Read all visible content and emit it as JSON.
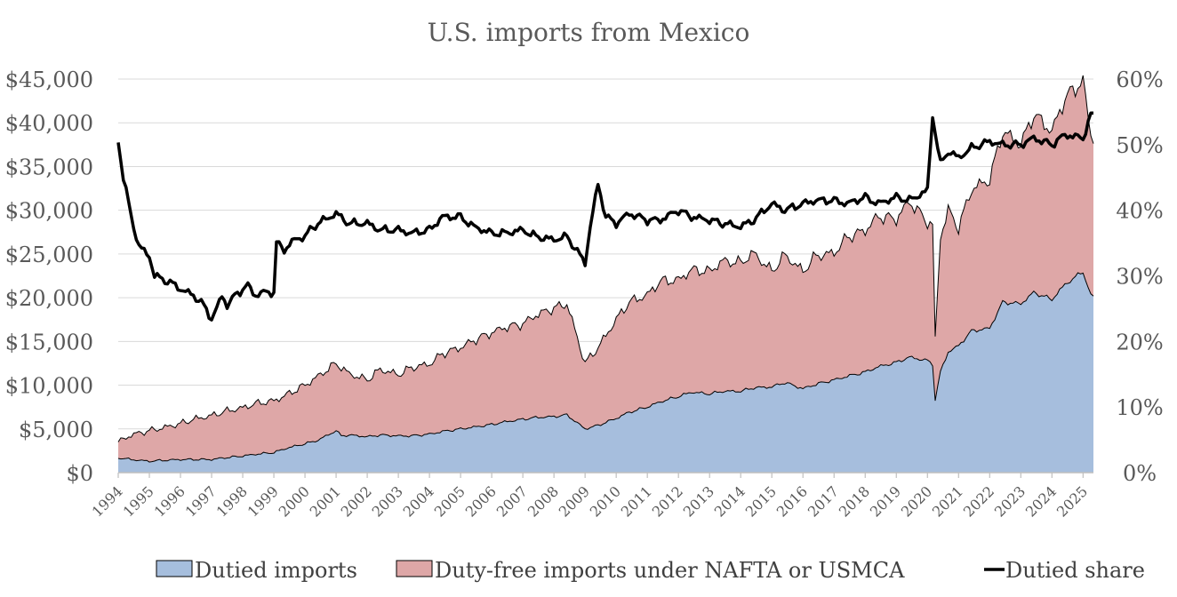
{
  "chart_data": {
    "type": "area",
    "title": "U.S. imports from Mexico",
    "x_range": [
      "1994-01",
      "2025-05"
    ],
    "x_tick_labels": [
      "1994",
      "1995",
      "1996",
      "1997",
      "1998",
      "1999",
      "2000",
      "2001",
      "2002",
      "2003",
      "2004",
      "2005",
      "2006",
      "2007",
      "2008",
      "2009",
      "2010",
      "2011",
      "2012",
      "2013",
      "2014",
      "2015",
      "2016",
      "2017",
      "2018",
      "2019",
      "2020",
      "2021",
      "2022",
      "2023",
      "2024",
      "2025"
    ],
    "y_left": {
      "min": 0,
      "max": 45000,
      "step": 5000,
      "tick_labels": [
        "$0",
        "$5,000",
        "$10,000",
        "$15,000",
        "$20,000",
        "$25,000",
        "$30,000",
        "$35,000",
        "$40,000",
        "$45,000"
      ]
    },
    "y_right": {
      "min": 0,
      "max": 60,
      "step": 10,
      "tick_labels": [
        "0%",
        "10%",
        "20%",
        "30%",
        "40%",
        "50%",
        "60%"
      ]
    },
    "grid": "horizontal",
    "legend_position": "bottom",
    "series": [
      {
        "name": "Dutied imports",
        "kind": "stacked-area",
        "color": "#a6bedd",
        "points": [
          [
            "1994-01",
            1700
          ],
          [
            "1994-06",
            1500
          ],
          [
            "1995-01",
            1300
          ],
          [
            "1995-06",
            1400
          ],
          [
            "1996-01",
            1500
          ],
          [
            "1996-06",
            1500
          ],
          [
            "1997-01",
            1500
          ],
          [
            "1997-06",
            1700
          ],
          [
            "1998-01",
            1900
          ],
          [
            "1998-06",
            2100
          ],
          [
            "1999-01",
            2300
          ],
          [
            "1999-06",
            2800
          ],
          [
            "2000-01",
            3300
          ],
          [
            "2000-06",
            3700
          ],
          [
            "2001-01",
            4800
          ],
          [
            "2001-03",
            4200
          ],
          [
            "2001-06",
            4300
          ],
          [
            "2002-01",
            4100
          ],
          [
            "2002-06",
            4300
          ],
          [
            "2003-01",
            4200
          ],
          [
            "2003-06",
            4200
          ],
          [
            "2004-01",
            4400
          ],
          [
            "2004-06",
            4700
          ],
          [
            "2005-01",
            5000
          ],
          [
            "2005-06",
            5200
          ],
          [
            "2006-01",
            5500
          ],
          [
            "2006-06",
            5800
          ],
          [
            "2007-01",
            6100
          ],
          [
            "2007-06",
            6300
          ],
          [
            "2008-01",
            6400
          ],
          [
            "2008-06",
            6600
          ],
          [
            "2009-01",
            5000
          ],
          [
            "2009-06",
            5400
          ],
          [
            "2010-01",
            6200
          ],
          [
            "2010-06",
            6900
          ],
          [
            "2011-01",
            7500
          ],
          [
            "2011-06",
            8100
          ],
          [
            "2012-01",
            8700
          ],
          [
            "2012-06",
            9200
          ],
          [
            "2013-01",
            9000
          ],
          [
            "2013-06",
            9300
          ],
          [
            "2014-01",
            9300
          ],
          [
            "2014-06",
            9700
          ],
          [
            "2015-01",
            9800
          ],
          [
            "2015-06",
            10300
          ],
          [
            "2016-01",
            9600
          ],
          [
            "2016-06",
            10100
          ],
          [
            "2017-01",
            10600
          ],
          [
            "2017-06",
            11000
          ],
          [
            "2018-01",
            11500
          ],
          [
            "2018-06",
            12100
          ],
          [
            "2019-01",
            12600
          ],
          [
            "2019-06",
            13200
          ],
          [
            "2020-01",
            12800
          ],
          [
            "2020-03",
            12400
          ],
          [
            "2020-04",
            8300
          ],
          [
            "2020-06",
            11500
          ],
          [
            "2020-09",
            13800
          ],
          [
            "2021-01",
            14500
          ],
          [
            "2021-06",
            16200
          ],
          [
            "2022-01",
            16500
          ],
          [
            "2022-06",
            19500
          ],
          [
            "2023-01",
            19300
          ],
          [
            "2023-06",
            20600
          ],
          [
            "2024-01",
            19800
          ],
          [
            "2024-06",
            21500
          ],
          [
            "2025-01",
            23000
          ],
          [
            "2025-04",
            20200
          ]
        ]
      },
      {
        "name": "Duty-free imports under NAFTA or USMCA",
        "kind": "stacked-area",
        "color": "#dea7a7",
        "total_points": [
          [
            "1994-01",
            3500
          ],
          [
            "1994-06",
            4300
          ],
          [
            "1995-01",
            4800
          ],
          [
            "1995-06",
            5100
          ],
          [
            "1996-01",
            5600
          ],
          [
            "1996-06",
            6100
          ],
          [
            "1997-01",
            6500
          ],
          [
            "1997-06",
            7000
          ],
          [
            "1998-01",
            7400
          ],
          [
            "1998-06",
            7900
          ],
          [
            "1999-01",
            8200
          ],
          [
            "1999-06",
            8900
          ],
          [
            "2000-01",
            10000
          ],
          [
            "2000-06",
            11000
          ],
          [
            "2001-01",
            12500
          ],
          [
            "2001-06",
            11300
          ],
          [
            "2002-01",
            10600
          ],
          [
            "2002-06",
            11800
          ],
          [
            "2003-01",
            11200
          ],
          [
            "2003-06",
            12000
          ],
          [
            "2004-01",
            12400
          ],
          [
            "2004-06",
            13600
          ],
          [
            "2005-01",
            14300
          ],
          [
            "2005-06",
            15100
          ],
          [
            "2006-01",
            16000
          ],
          [
            "2006-06",
            16600
          ],
          [
            "2007-01",
            17000
          ],
          [
            "2007-06",
            18000
          ],
          [
            "2008-01",
            18800
          ],
          [
            "2008-06",
            19300
          ],
          [
            "2009-01",
            12500
          ],
          [
            "2009-06",
            14300
          ],
          [
            "2010-01",
            17500
          ],
          [
            "2010-06",
            19500
          ],
          [
            "2011-01",
            20300
          ],
          [
            "2011-06",
            21900
          ],
          [
            "2012-01",
            22000
          ],
          [
            "2012-06",
            23200
          ],
          [
            "2013-01",
            23000
          ],
          [
            "2013-06",
            24200
          ],
          [
            "2014-01",
            24000
          ],
          [
            "2014-06",
            25100
          ],
          [
            "2015-01",
            23000
          ],
          [
            "2015-06",
            24900
          ],
          [
            "2016-01",
            23000
          ],
          [
            "2016-06",
            24800
          ],
          [
            "2017-01",
            25100
          ],
          [
            "2017-06",
            26900
          ],
          [
            "2018-01",
            27700
          ],
          [
            "2018-06",
            29300
          ],
          [
            "2019-01",
            29000
          ],
          [
            "2019-06",
            31000
          ],
          [
            "2020-01",
            28700
          ],
          [
            "2020-03",
            28200
          ],
          [
            "2020-04",
            15200
          ],
          [
            "2020-06",
            27000
          ],
          [
            "2020-09",
            30000
          ],
          [
            "2021-01",
            28000
          ],
          [
            "2021-06",
            32400
          ],
          [
            "2022-01",
            33500
          ],
          [
            "2022-06",
            39000
          ],
          [
            "2023-01",
            37500
          ],
          [
            "2023-06",
            41000
          ],
          [
            "2024-01",
            39000
          ],
          [
            "2024-06",
            42800
          ],
          [
            "2025-01",
            44800
          ],
          [
            "2025-04",
            38500
          ]
        ]
      },
      {
        "name": "Dutied share",
        "kind": "line",
        "axis": "right",
        "color": "#000000",
        "points": [
          [
            "1994-01",
            50.5
          ],
          [
            "1994-03",
            45
          ],
          [
            "1994-06",
            39
          ],
          [
            "1994-09",
            34.5
          ],
          [
            "1995-01",
            33
          ],
          [
            "1995-03",
            30
          ],
          [
            "1995-06",
            29.5
          ],
          [
            "1995-09",
            29
          ],
          [
            "1996-01",
            28
          ],
          [
            "1996-06",
            27
          ],
          [
            "1996-09",
            26
          ],
          [
            "1997-01",
            23.5
          ],
          [
            "1997-03",
            25
          ],
          [
            "1997-05",
            27
          ],
          [
            "1997-07",
            25.5
          ],
          [
            "1997-10",
            27
          ],
          [
            "1998-01",
            28
          ],
          [
            "1998-03",
            28.5
          ],
          [
            "1998-06",
            27
          ],
          [
            "1998-09",
            27.5
          ],
          [
            "1999-01",
            27.5
          ],
          [
            "1999-02",
            35
          ],
          [
            "1999-05",
            34
          ],
          [
            "1999-09",
            35.5
          ],
          [
            "2000-01",
            36
          ],
          [
            "2000-03",
            37
          ],
          [
            "2000-06",
            38
          ],
          [
            "2001-01",
            39.5
          ],
          [
            "2001-06",
            38
          ],
          [
            "2002-01",
            38
          ],
          [
            "2002-06",
            37
          ],
          [
            "2003-01",
            37
          ],
          [
            "2003-06",
            36.5
          ],
          [
            "2004-01",
            37
          ],
          [
            "2004-06",
            39
          ],
          [
            "2005-01",
            39
          ],
          [
            "2005-06",
            37.5
          ],
          [
            "2006-01",
            36.5
          ],
          [
            "2006-06",
            36.5
          ],
          [
            "2007-01",
            37
          ],
          [
            "2007-06",
            36
          ],
          [
            "2008-01",
            35.5
          ],
          [
            "2008-06",
            36
          ],
          [
            "2009-01",
            32
          ],
          [
            "2009-03",
            37.5
          ],
          [
            "2009-06",
            44
          ],
          [
            "2009-09",
            39
          ],
          [
            "2010-01",
            38
          ],
          [
            "2010-06",
            39.5
          ],
          [
            "2011-01",
            38.5
          ],
          [
            "2011-06",
            38.5
          ],
          [
            "2012-01",
            40
          ],
          [
            "2012-06",
            39
          ],
          [
            "2013-01",
            38.5
          ],
          [
            "2013-06",
            38
          ],
          [
            "2014-01",
            37.5
          ],
          [
            "2014-06",
            38.5
          ],
          [
            "2015-01",
            41
          ],
          [
            "2015-06",
            40
          ],
          [
            "2016-01",
            41
          ],
          [
            "2016-06",
            41.5
          ],
          [
            "2017-01",
            41.5
          ],
          [
            "2017-06",
            41
          ],
          [
            "2018-01",
            42
          ],
          [
            "2018-06",
            41
          ],
          [
            "2019-01",
            42
          ],
          [
            "2019-06",
            41.5
          ],
          [
            "2020-01",
            43
          ],
          [
            "2020-03",
            54.5
          ],
          [
            "2020-06",
            47
          ],
          [
            "2020-09",
            49
          ],
          [
            "2021-01",
            48
          ],
          [
            "2021-06",
            49.5
          ],
          [
            "2022-01",
            50.5
          ],
          [
            "2022-06",
            50
          ],
          [
            "2023-01",
            50
          ],
          [
            "2023-06",
            51
          ],
          [
            "2024-01",
            50
          ],
          [
            "2024-06",
            51.5
          ],
          [
            "2025-01",
            51
          ],
          [
            "2025-04",
            54.5
          ]
        ]
      }
    ]
  }
}
